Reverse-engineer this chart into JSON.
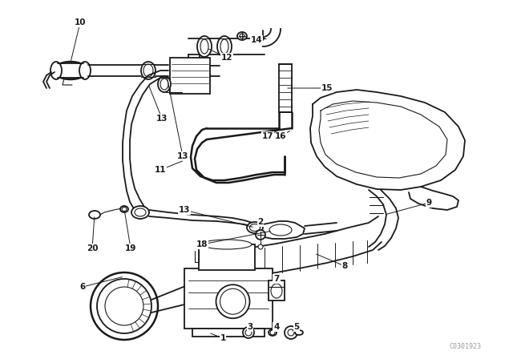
{
  "bg_color": "#ffffff",
  "line_color": "#1a1a1a",
  "watermark": "C0301923",
  "lw_main": 1.3,
  "lw_thin": 0.8,
  "lw_thick": 1.8,
  "label_fs": 7.5
}
